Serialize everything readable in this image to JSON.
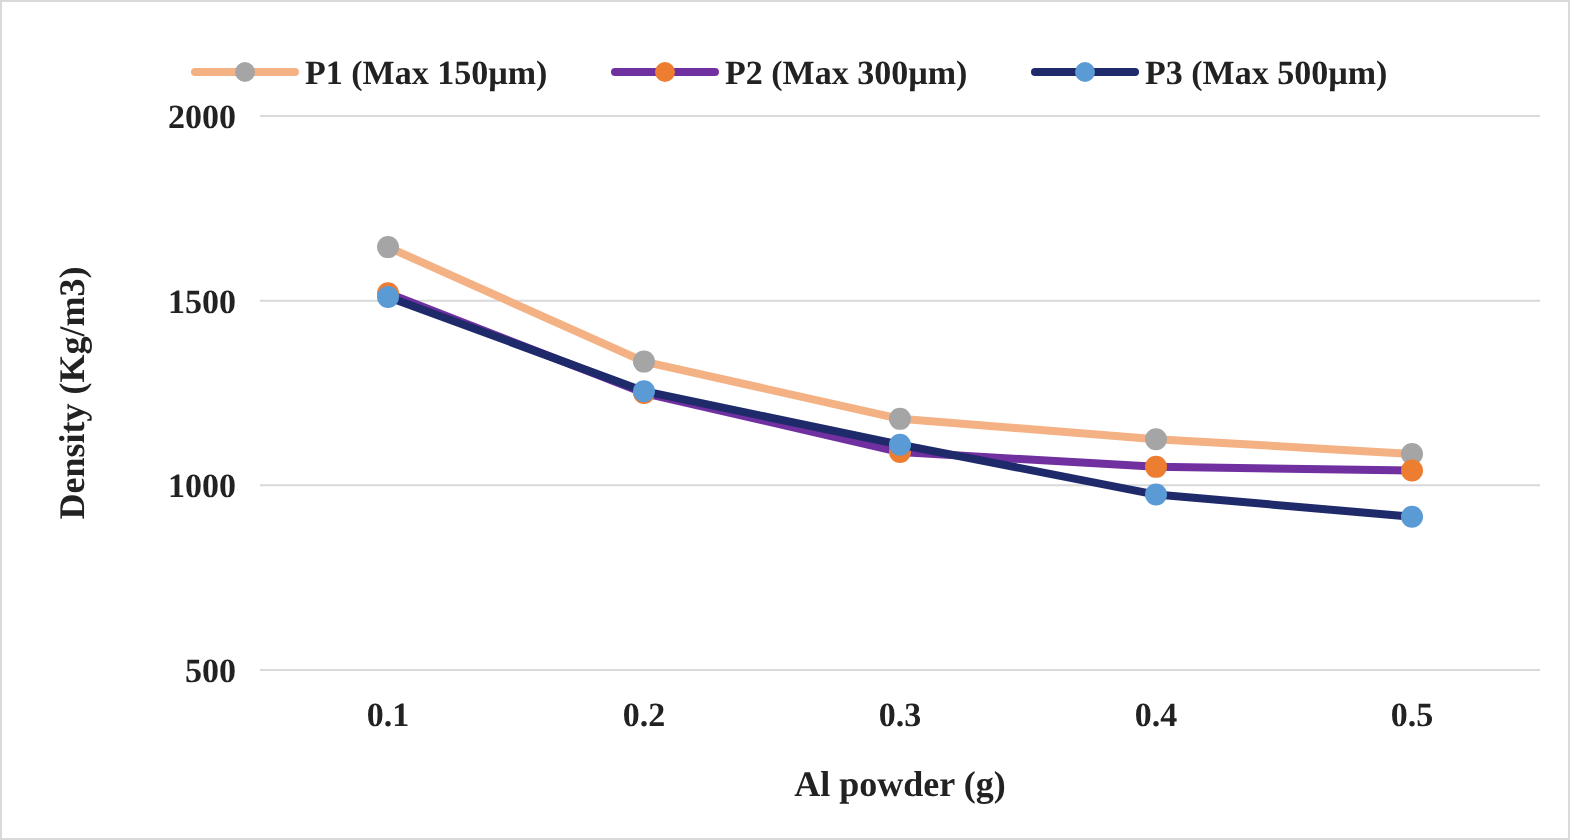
{
  "chart_data": {
    "type": "line",
    "xlabel": "Al powder  (g)",
    "ylabel": "Density (Kg/m3)",
    "categories": [
      "0.1",
      "0.2",
      "0.3",
      "0.4",
      "0.5"
    ],
    "ylim": [
      500,
      2000
    ],
    "yticks": [
      500,
      1000,
      1500,
      2000
    ],
    "grid": "y",
    "legend": "top",
    "marker": "circle",
    "series": [
      {
        "name": "P1 (Max 150µm)",
        "color": "#f4b183",
        "colors": [
          "#a5a5a5",
          "#a5a5a5",
          "#a5a5a5",
          "#a5a5a5",
          "#a5a5a5"
        ],
        "values": [
          1645,
          1335,
          1180,
          1125,
          1085
        ]
      },
      {
        "name": "P2 (Max 300µm)",
        "color": "#7030a0",
        "colors": [
          "#ed7d31",
          "#ed7d31",
          "#ed7d31",
          "#ed7d31",
          "#ed7d31"
        ],
        "values": [
          1520,
          1250,
          1090,
          1050,
          1040
        ]
      },
      {
        "name": "P3 (Max 500µm)",
        "color": "#1f2a6b",
        "colors": [
          "#5b9bd5",
          "#5b9bd5",
          "#5b9bd5",
          "#5b9bd5",
          "#5b9bd5"
        ],
        "values": [
          1510,
          1255,
          1110,
          975,
          915
        ]
      }
    ]
  }
}
